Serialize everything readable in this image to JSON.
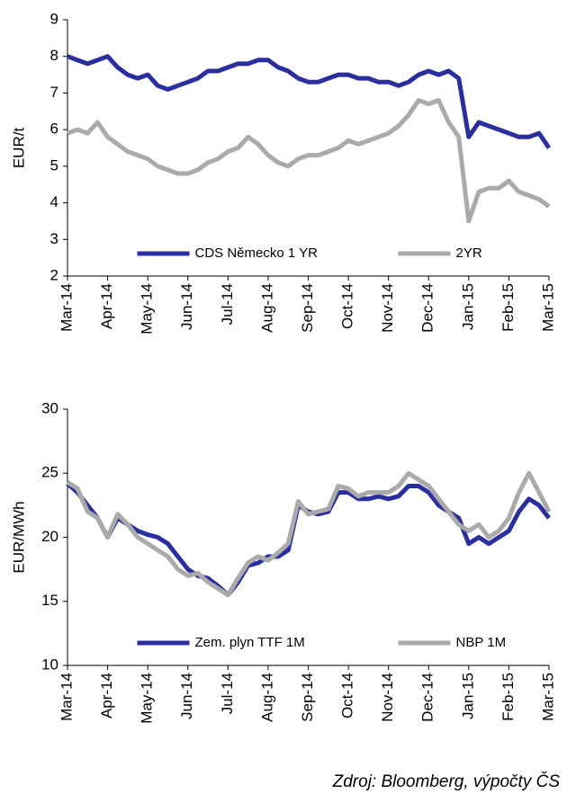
{
  "chart_data": [
    {
      "type": "line",
      "y_label": "EUR/t",
      "categories": [
        "Mar-14",
        null,
        null,
        null,
        "Apr-14",
        null,
        null,
        null,
        "May-14",
        null,
        null,
        null,
        "Jun-14",
        null,
        null,
        null,
        "Jul-14",
        null,
        null,
        null,
        "Aug-14",
        null,
        null,
        null,
        "Sep-14",
        null,
        null,
        null,
        "Oct-14",
        null,
        null,
        null,
        "Nov-14",
        null,
        null,
        null,
        "Dec-14",
        null,
        null,
        null,
        "Jan-15",
        null,
        null,
        null,
        "Feb-15",
        null,
        null,
        null,
        "Mar-15"
      ],
      "series": [
        {
          "name": "CDS Německo 1 YR",
          "color": "#2b2f9e",
          "values": [
            8.0,
            7.9,
            7.8,
            7.9,
            8.0,
            7.7,
            7.5,
            7.4,
            7.5,
            7.2,
            7.1,
            7.2,
            7.3,
            7.4,
            7.6,
            7.6,
            7.7,
            7.8,
            7.8,
            7.9,
            7.9,
            7.7,
            7.6,
            7.4,
            7.3,
            7.3,
            7.4,
            7.5,
            7.5,
            7.4,
            7.4,
            7.3,
            7.3,
            7.2,
            7.3,
            7.5,
            7.6,
            7.5,
            7.6,
            7.4,
            5.8,
            6.2,
            6.1,
            6.0,
            5.9,
            5.8,
            5.8,
            5.9,
            5.5
          ]
        },
        {
          "name": "2YR",
          "color": "#aaaaaa",
          "values": [
            5.9,
            6.0,
            5.9,
            6.2,
            5.8,
            5.6,
            5.4,
            5.3,
            5.2,
            5.0,
            4.9,
            4.8,
            4.8,
            4.9,
            5.1,
            5.2,
            5.4,
            5.5,
            5.8,
            5.6,
            5.3,
            5.1,
            5.0,
            5.2,
            5.3,
            5.3,
            5.4,
            5.5,
            5.7,
            5.6,
            5.7,
            5.8,
            5.9,
            6.1,
            6.4,
            6.8,
            6.7,
            6.8,
            6.2,
            5.8,
            3.5,
            4.3,
            4.4,
            4.4,
            4.6,
            4.3,
            4.2,
            4.1,
            3.9
          ]
        }
      ],
      "ylim": [
        2,
        9
      ],
      "yticks": [
        2,
        3,
        4,
        5,
        6,
        7,
        8,
        9
      ],
      "legend": "lower center"
    },
    {
      "type": "line",
      "y_label": "EUR/MWh",
      "categories": [
        "Mar-14",
        null,
        null,
        null,
        "Apr-14",
        null,
        null,
        null,
        "May-14",
        null,
        null,
        null,
        "Jun-14",
        null,
        null,
        null,
        "Jul-14",
        null,
        null,
        null,
        "Aug-14",
        null,
        null,
        null,
        "Sep-14",
        null,
        null,
        null,
        "Oct-14",
        null,
        null,
        null,
        "Nov-14",
        null,
        null,
        null,
        "Dec-14",
        null,
        null,
        null,
        "Jan-15",
        null,
        null,
        null,
        "Feb-15",
        null,
        null,
        null,
        "Mar-15"
      ],
      "series": [
        {
          "name": "Zem. plyn TTF 1M",
          "color": "#2b2f9e",
          "values": [
            24.2,
            23.5,
            22.5,
            21.5,
            20.0,
            21.5,
            21.0,
            20.5,
            20.2,
            20.0,
            19.5,
            18.5,
            17.5,
            17.0,
            16.8,
            16.2,
            15.5,
            16.5,
            17.8,
            18.0,
            18.5,
            18.5,
            19.0,
            22.5,
            22.0,
            21.8,
            22.0,
            23.5,
            23.5,
            23.0,
            23.0,
            23.2,
            23.0,
            23.2,
            24.0,
            24.0,
            23.5,
            22.5,
            22.0,
            21.5,
            19.5,
            20.0,
            19.5,
            20.0,
            20.5,
            22.0,
            23.0,
            22.5,
            21.5
          ]
        },
        {
          "name": "NBP 1M",
          "color": "#aaaaaa",
          "values": [
            24.3,
            23.8,
            22.0,
            21.5,
            20.0,
            21.8,
            21.0,
            20.0,
            19.5,
            19.0,
            18.5,
            17.5,
            17.0,
            17.2,
            16.5,
            16.0,
            15.5,
            16.8,
            18.0,
            18.5,
            18.2,
            18.8,
            19.5,
            22.8,
            21.8,
            22.0,
            22.2,
            24.0,
            23.8,
            23.2,
            23.5,
            23.5,
            23.5,
            24.0,
            25.0,
            24.5,
            24.0,
            23.0,
            22.0,
            21.0,
            20.5,
            21.0,
            20.0,
            20.5,
            21.5,
            23.5,
            25.0,
            23.5,
            22.0
          ]
        }
      ],
      "ylim": [
        10,
        30
      ],
      "yticks": [
        10,
        15,
        20,
        25,
        30
      ],
      "legend": "lower center"
    }
  ],
  "source": "Zdroj: Bloomberg, výpočty ČS"
}
